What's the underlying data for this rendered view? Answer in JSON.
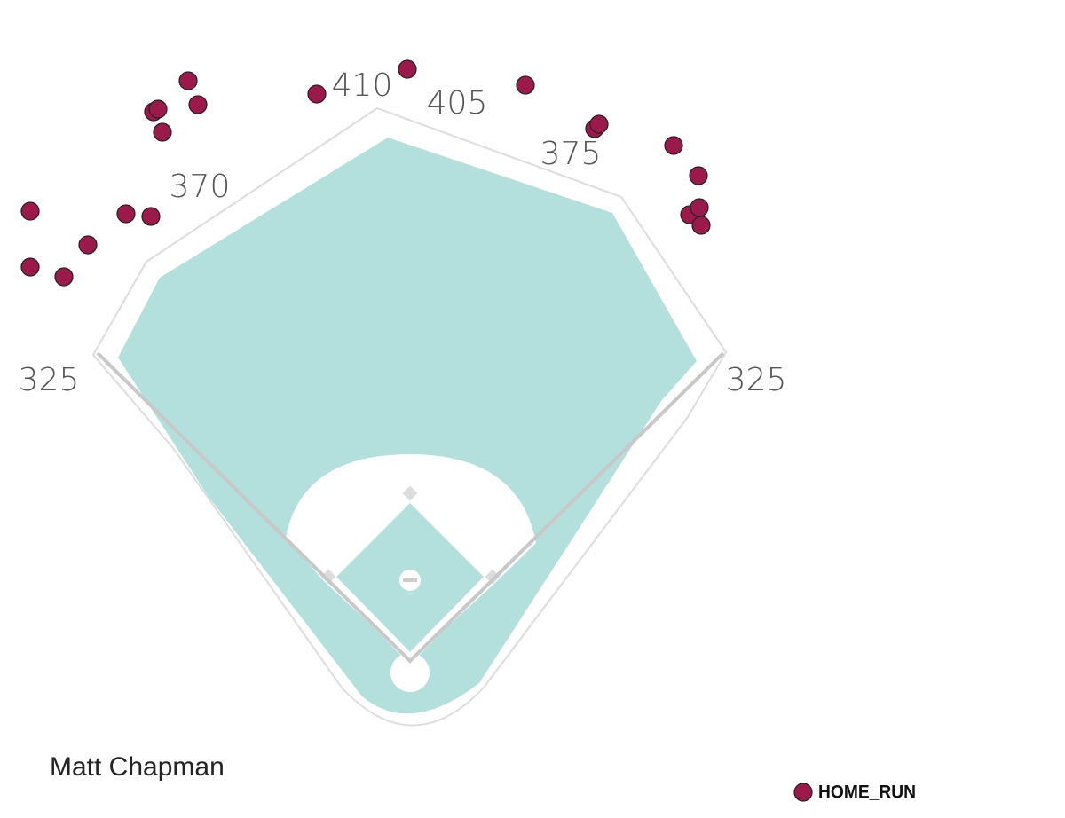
{
  "chart_data": {
    "type": "scatter",
    "title": "Matt Chapman",
    "distances": [
      325,
      370,
      410,
      405,
      375,
      325
    ],
    "xlim": [
      0,
      1200
    ],
    "ylim": [
      922,
      0
    ],
    "legend": "bottom-right",
    "series": [
      {
        "name": "HOME_RUN",
        "color": "#9b1a4b",
        "x": [
          34,
          34,
          72,
          99,
          142,
          170,
          173,
          178,
          183,
          212,
          223,
          357,
          459,
          592,
          670,
          675,
          759,
          787,
          777,
          788,
          790
        ],
        "values": [
          238,
          301,
          312,
          276,
          241,
          244,
          126,
          123,
          149,
          91,
          118,
          106,
          78,
          96,
          145,
          140,
          164,
          198,
          242,
          234,
          254
        ]
      }
    ]
  }
}
